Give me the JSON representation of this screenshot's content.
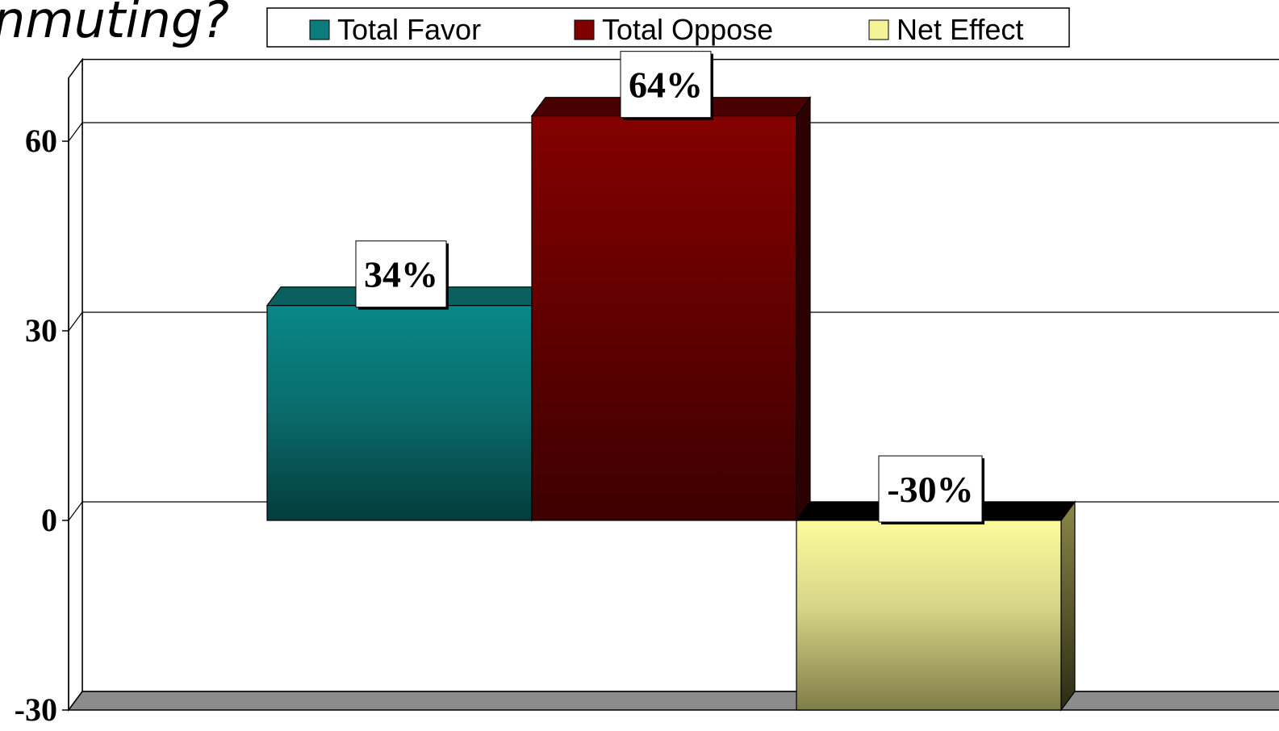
{
  "title": "nmuting?",
  "chart_data": {
    "type": "bar",
    "title": "nmuting?",
    "xlabel": "",
    "ylabel": "",
    "ylim": [
      -30,
      70
    ],
    "yticks": [
      "60",
      "30",
      "0",
      "-30"
    ],
    "ytick_values": [
      60,
      30,
      0,
      -30
    ],
    "grid": true,
    "legend_position": "top",
    "style": "3d",
    "series": [
      {
        "name": "Total Favor",
        "value": 34,
        "label": "34%",
        "color": "#0e8a8a"
      },
      {
        "name": "Total Oppose",
        "value": 64,
        "label": "64%",
        "color": "#8a0000"
      },
      {
        "name": "Net Effect",
        "value": -30,
        "label": "-30%",
        "color": "#f6f5a0"
      }
    ]
  }
}
